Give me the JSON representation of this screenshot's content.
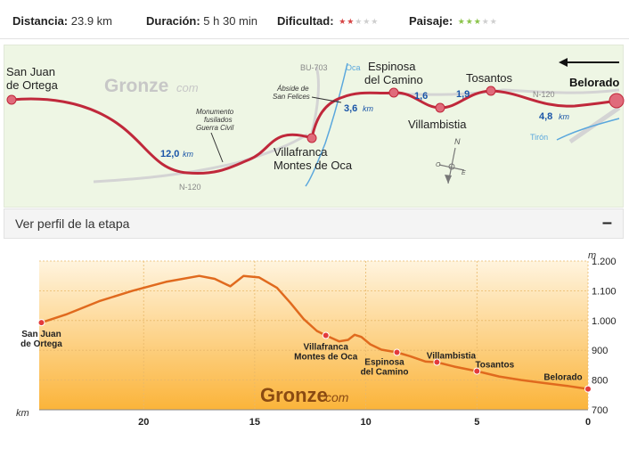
{
  "stats": {
    "distance_label": "Distancia:",
    "distance_value": "23.9 km",
    "duration_label": "Duración:",
    "duration_value": "5 h 30 min",
    "difficulty_label": "Dificultad:",
    "difficulty_rating": 2,
    "difficulty_max": 5,
    "difficulty_color": "#d64545",
    "landscape_label": "Paisaje:",
    "landscape_rating": 3,
    "landscape_max": 5,
    "landscape_color": "#8bc34a"
  },
  "map": {
    "brand": "Gronze",
    "brand_suffix": "com",
    "start": [
      "San Juan",
      "de Ortega"
    ],
    "villafranca": [
      "Villafranca",
      "Montes de Oca"
    ],
    "espinosa": [
      "Espinosa",
      "del Camino"
    ],
    "villambistia": "Villambistia",
    "tosantos": "Tosantos",
    "belorado": "Belorado",
    "monument": [
      "Monumento",
      "fusilados",
      "Guerra Civil"
    ],
    "abside": [
      "Ábside de",
      "San Felices"
    ],
    "road_bu703": "BU-703",
    "road_n120_left": "N-120",
    "road_n120_right": "N-120",
    "river_oca": "Oca",
    "river_tiron": "Tirón",
    "dist_1_num": "12,0",
    "dist_2_num": "3,6",
    "dist_3_num": "1,6",
    "dist_4_num": "1,9",
    "dist_5_num": "4,8",
    "km_unit": "km",
    "compass_n": "N",
    "compass_o": "O",
    "compass_e": "E",
    "route_color": "#c0283b",
    "distance_color": "#1a55a8",
    "river_color": "#5aa7dd"
  },
  "profile_panel": {
    "title": "Ver perfil de la etapa",
    "toggle": "–"
  },
  "chart_data": {
    "type": "area",
    "xlabel": "km",
    "ylabel": "m",
    "x_ticks": [
      "20",
      "15",
      "10",
      "5",
      "0"
    ],
    "y_ticks": [
      "1.200",
      "1.100",
      "1.000",
      "900",
      "800",
      "700"
    ],
    "xlim": [
      24.7,
      0
    ],
    "ylim": [
      700,
      1200
    ],
    "brand": "Gronze",
    "brand_suffix": "com",
    "line_color": "#e06a1e",
    "series": [
      {
        "x": [
          24.6,
          23.5,
          22.0,
          20.5,
          19.0,
          17.5,
          16.8,
          16.1,
          15.5,
          14.8,
          14.0,
          13.4,
          12.8,
          12.2,
          11.8,
          11.2,
          10.8,
          10.5,
          10.2,
          9.8,
          9.3,
          8.6,
          8.0,
          7.3,
          6.8,
          6.0,
          5.0,
          4.0,
          3.0,
          2.0,
          0.9,
          0.0
        ],
        "y": [
          993,
          1020,
          1065,
          1100,
          1130,
          1150,
          1140,
          1115,
          1150,
          1145,
          1110,
          1060,
          1005,
          965,
          950,
          930,
          935,
          952,
          945,
          920,
          902,
          893,
          880,
          862,
          860,
          845,
          830,
          812,
          800,
          790,
          780,
          770
        ]
      }
    ],
    "points": [
      {
        "name": [
          "San Juan",
          "de Ortega"
        ],
        "x": 24.6,
        "y": 993
      },
      {
        "name": [
          "Villafranca",
          "Montes de Oca"
        ],
        "x": 11.8,
        "y": 950
      },
      {
        "name": [
          "Espinosa",
          "del Camino"
        ],
        "x": 8.6,
        "y": 893
      },
      {
        "name": [
          "Villambistia"
        ],
        "x": 6.8,
        "y": 860
      },
      {
        "name": [
          "Tosantos"
        ],
        "x": 5.0,
        "y": 830
      },
      {
        "name": [
          "Belorado"
        ],
        "x": 0.0,
        "y": 770
      }
    ]
  }
}
